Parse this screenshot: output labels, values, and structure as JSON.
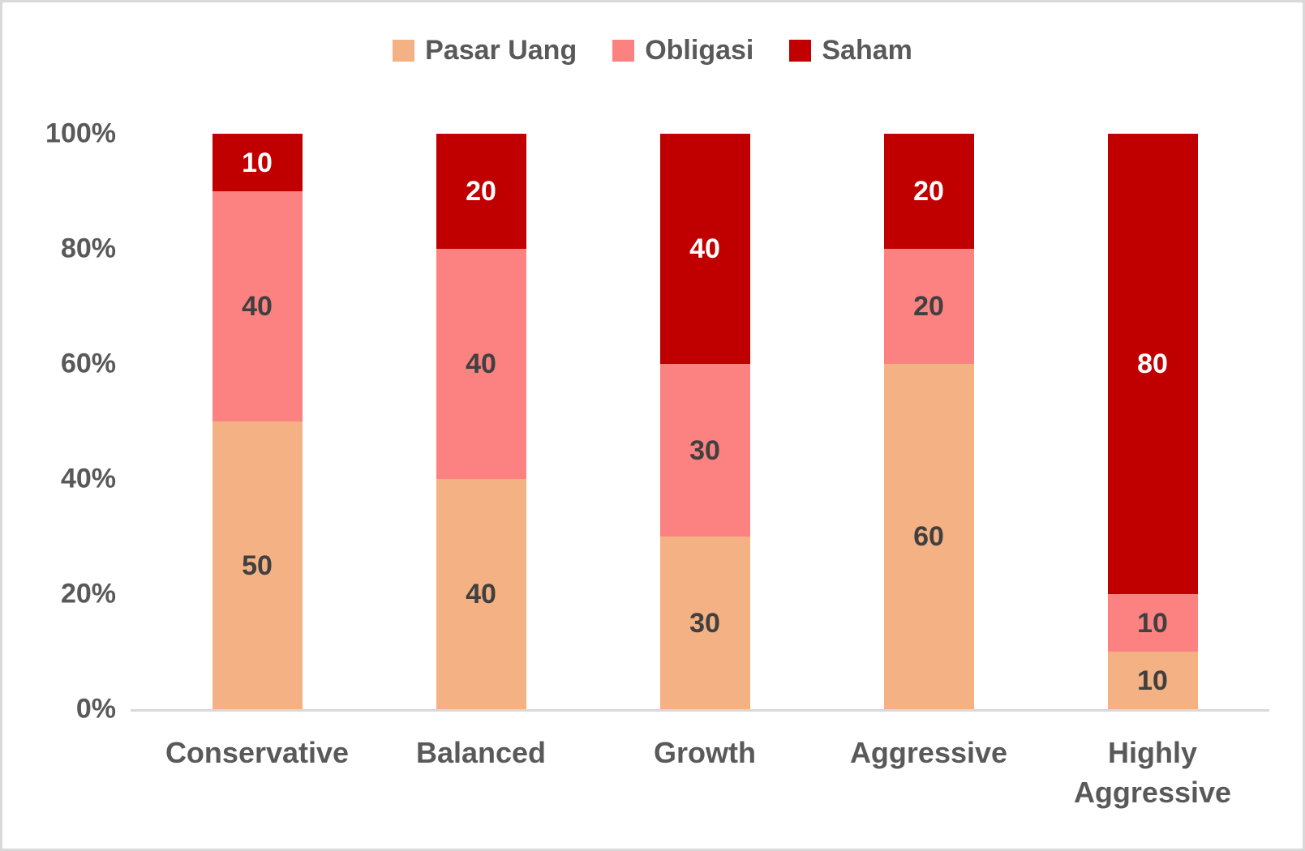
{
  "frame": {
    "background": "#FFFFFF",
    "border_color": "#D9D9D9"
  },
  "chart_data": {
    "type": "bar",
    "subtype": "percent-stacked-column",
    "title": "",
    "categories": [
      "Conservative",
      "Balanced",
      "Growth",
      "Aggressive",
      "Highly Aggressive"
    ],
    "series": [
      {
        "name": "Pasar Uang",
        "color": "#F4B183",
        "label_color": "#404040",
        "values": [
          50,
          40,
          30,
          60,
          10
        ]
      },
      {
        "name": "Obligasi",
        "color": "#FC8181",
        "label_color": "#404040",
        "values": [
          40,
          40,
          30,
          20,
          10
        ]
      },
      {
        "name": "Saham",
        "color": "#C00000",
        "label_color": "#FFFFFF",
        "values": [
          10,
          20,
          40,
          20,
          80
        ]
      }
    ],
    "y_axis": {
      "tick_labels": [
        "0%",
        "20%",
        "40%",
        "60%",
        "80%",
        "100%"
      ],
      "min": 0,
      "max": 100
    },
    "x_axis": {
      "line_color": "#D9D9D9"
    },
    "data_labels": true,
    "grid": false,
    "legend_position": "top",
    "style": {
      "axis_text_color": "#595959",
      "category_text_color": "#595959",
      "legend_text_color": "#595959"
    }
  }
}
